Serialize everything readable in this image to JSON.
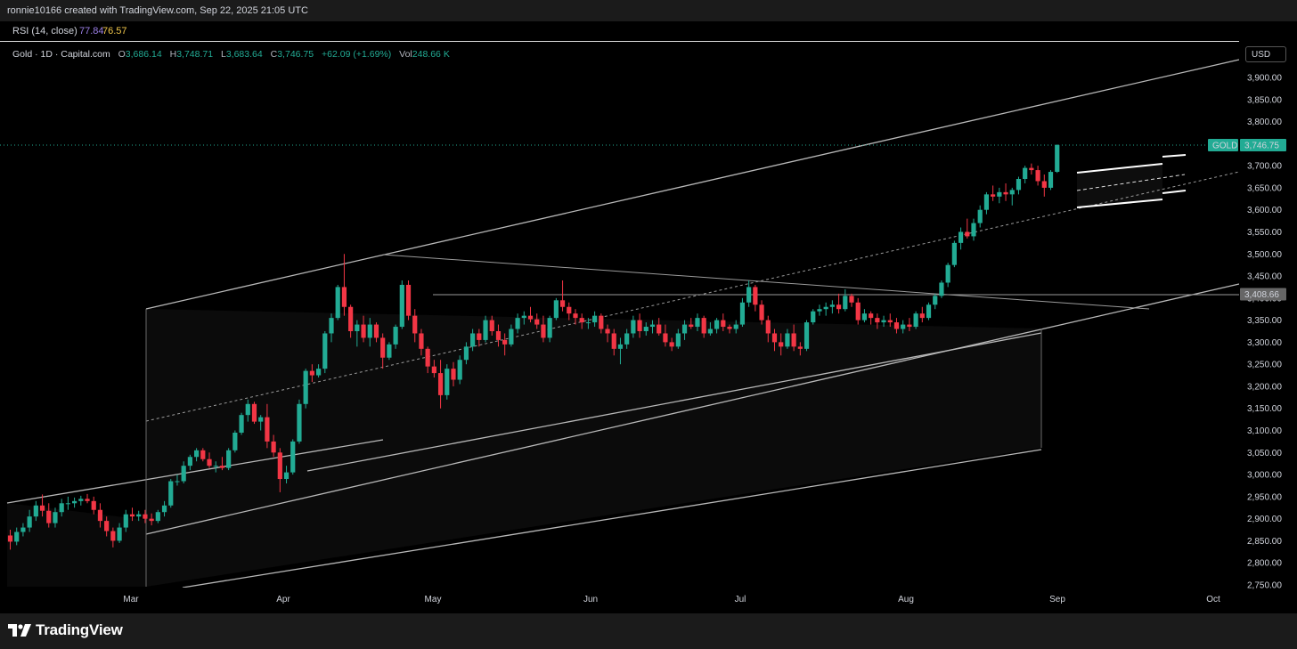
{
  "header": {
    "attribution": "ronnie10166 created with TradingView.com, Sep 22, 2025 21:05 UTC"
  },
  "rsi": {
    "label": "RSI (14, close)",
    "value": "77.84",
    "ma_value": "76.57",
    "value_color": "#9b7fe6",
    "ma_color": "#f0c64a"
  },
  "legend": {
    "symbol": "Gold · 1D · Capital.com",
    "o_key": "O",
    "o_val": "3,686.14",
    "h_key": "H",
    "h_val": "3,748.71",
    "l_key": "L",
    "l_val": "3,683.64",
    "c_key": "C",
    "c_val": "3,746.75",
    "change": "+62.09 (+1.69%)",
    "vol_key": "Vol",
    "vol_val": "248.66 K"
  },
  "price_axis": {
    "currency": "USD",
    "ticks": [
      "3,900.00",
      "3,850.00",
      "3,800.00",
      "3,750.00",
      "3,700.00",
      "3,650.00",
      "3,600.00",
      "3,550.00",
      "3,500.00",
      "3,450.00",
      "3,400.00",
      "3,350.00",
      "3,300.00",
      "3,250.00",
      "3,200.00",
      "3,150.00",
      "3,100.00",
      "3,050.00",
      "3,000.00",
      "2,950.00",
      "2,900.00",
      "2,850.00",
      "2,800.00",
      "2,750.00"
    ],
    "last_price_label": "GOLD",
    "last_price": "3,746.75",
    "level_label": "3,408.66"
  },
  "time_axis": {
    "ticks": [
      "Mar",
      "Apr",
      "May",
      "Jun",
      "Jul",
      "Aug",
      "Sep",
      "Oct"
    ]
  },
  "colors": {
    "up": "#22ab94",
    "down": "#f23645",
    "background": "#000000",
    "line": "#bdbdbd"
  },
  "footer": {
    "brand": "TradingView",
    "logo_icon": "tradingview-logo-icon"
  },
  "chart_data": {
    "type": "candlestick",
    "title": "Gold · 1D · Capital.com",
    "ylim": [
      2730,
      3980
    ],
    "y_scale": "linear",
    "x_ticks": [
      "Mar",
      "Apr",
      "May",
      "Jun",
      "Jul",
      "Aug",
      "Sep",
      "Oct"
    ],
    "grid": false,
    "ohlc": [
      [
        2862,
        2875,
        2830,
        2848
      ],
      [
        2848,
        2880,
        2840,
        2870
      ],
      [
        2870,
        2890,
        2860,
        2880
      ],
      [
        2880,
        2920,
        2870,
        2905
      ],
      [
        2905,
        2940,
        2895,
        2930
      ],
      [
        2930,
        2955,
        2905,
        2918
      ],
      [
        2918,
        2935,
        2880,
        2890
      ],
      [
        2890,
        2925,
        2880,
        2915
      ],
      [
        2915,
        2945,
        2905,
        2935
      ],
      [
        2935,
        2950,
        2920,
        2935
      ],
      [
        2935,
        2948,
        2925,
        2940
      ],
      [
        2940,
        2952,
        2930,
        2945
      ],
      [
        2945,
        2956,
        2935,
        2940
      ],
      [
        2940,
        2950,
        2910,
        2920
      ],
      [
        2920,
        2935,
        2880,
        2895
      ],
      [
        2895,
        2905,
        2860,
        2872
      ],
      [
        2872,
        2880,
        2835,
        2850
      ],
      [
        2850,
        2890,
        2845,
        2880
      ],
      [
        2880,
        2920,
        2870,
        2910
      ],
      [
        2910,
        2925,
        2895,
        2905
      ],
      [
        2905,
        2918,
        2895,
        2910
      ],
      [
        2910,
        2920,
        2890,
        2900
      ],
      [
        2900,
        2912,
        2885,
        2895
      ],
      [
        2895,
        2920,
        2890,
        2915
      ],
      [
        2915,
        2940,
        2905,
        2930
      ],
      [
        2930,
        2990,
        2925,
        2985
      ],
      [
        2985,
        3000,
        2975,
        2985
      ],
      [
        2985,
        3030,
        2980,
        3020
      ],
      [
        3020,
        3045,
        3010,
        3040
      ],
      [
        3040,
        3060,
        3030,
        3055
      ],
      [
        3055,
        3060,
        3030,
        3035
      ],
      [
        3035,
        3050,
        3015,
        3020
      ],
      [
        3020,
        3030,
        3005,
        3020
      ],
      [
        3020,
        3040,
        3010,
        3015
      ],
      [
        3015,
        3060,
        3010,
        3055
      ],
      [
        3055,
        3100,
        3050,
        3095
      ],
      [
        3095,
        3140,
        3090,
        3135
      ],
      [
        3135,
        3170,
        3120,
        3160
      ],
      [
        3160,
        3165,
        3115,
        3120
      ],
      [
        3120,
        3135,
        3100,
        3130
      ],
      [
        3130,
        3160,
        3060,
        3075
      ],
      [
        3075,
        3090,
        3040,
        3050
      ],
      [
        3050,
        3060,
        2960,
        2990
      ],
      [
        2990,
        3020,
        2980,
        3005
      ],
      [
        3005,
        3080,
        3000,
        3075
      ],
      [
        3075,
        3170,
        3070,
        3160
      ],
      [
        3160,
        3240,
        3150,
        3235
      ],
      [
        3235,
        3250,
        3210,
        3225
      ],
      [
        3225,
        3250,
        3220,
        3240
      ],
      [
        3240,
        3325,
        3230,
        3320
      ],
      [
        3320,
        3365,
        3300,
        3355
      ],
      [
        3355,
        3430,
        3350,
        3425
      ],
      [
        3425,
        3500,
        3360,
        3380
      ],
      [
        3380,
        3385,
        3310,
        3325
      ],
      [
        3325,
        3350,
        3290,
        3340
      ],
      [
        3340,
        3360,
        3300,
        3310
      ],
      [
        3310,
        3355,
        3290,
        3340
      ],
      [
        3340,
        3345,
        3300,
        3310
      ],
      [
        3310,
        3320,
        3240,
        3265
      ],
      [
        3265,
        3300,
        3260,
        3295
      ],
      [
        3295,
        3340,
        3285,
        3335
      ],
      [
        3335,
        3440,
        3330,
        3430
      ],
      [
        3430,
        3440,
        3350,
        3360
      ],
      [
        3360,
        3375,
        3300,
        3320
      ],
      [
        3320,
        3330,
        3270,
        3285
      ],
      [
        3285,
        3290,
        3230,
        3245
      ],
      [
        3245,
        3260,
        3220,
        3230
      ],
      [
        3230,
        3260,
        3150,
        3180
      ],
      [
        3180,
        3250,
        3170,
        3240
      ],
      [
        3240,
        3255,
        3200,
        3215
      ],
      [
        3215,
        3270,
        3205,
        3260
      ],
      [
        3260,
        3300,
        3250,
        3290
      ],
      [
        3290,
        3330,
        3280,
        3320
      ],
      [
        3320,
        3330,
        3290,
        3305
      ],
      [
        3305,
        3360,
        3300,
        3350
      ],
      [
        3350,
        3360,
        3315,
        3325
      ],
      [
        3325,
        3340,
        3290,
        3305
      ],
      [
        3305,
        3320,
        3270,
        3295
      ],
      [
        3295,
        3340,
        3290,
        3330
      ],
      [
        3330,
        3365,
        3320,
        3355
      ],
      [
        3355,
        3370,
        3340,
        3360
      ],
      [
        3360,
        3380,
        3345,
        3352
      ],
      [
        3352,
        3365,
        3330,
        3340
      ],
      [
        3340,
        3360,
        3300,
        3310
      ],
      [
        3310,
        3360,
        3300,
        3355
      ],
      [
        3355,
        3400,
        3350,
        3395
      ],
      [
        3395,
        3440,
        3370,
        3380
      ],
      [
        3380,
        3390,
        3350,
        3365
      ],
      [
        3365,
        3375,
        3340,
        3355
      ],
      [
        3355,
        3365,
        3330,
        3345
      ],
      [
        3345,
        3355,
        3330,
        3345
      ],
      [
        3345,
        3370,
        3335,
        3360
      ],
      [
        3360,
        3365,
        3320,
        3330
      ],
      [
        3330,
        3340,
        3300,
        3320
      ],
      [
        3320,
        3330,
        3270,
        3285
      ],
      [
        3285,
        3310,
        3250,
        3295
      ],
      [
        3295,
        3330,
        3285,
        3320
      ],
      [
        3320,
        3360,
        3310,
        3350
      ],
      [
        3350,
        3365,
        3310,
        3325
      ],
      [
        3325,
        3345,
        3315,
        3335
      ],
      [
        3335,
        3350,
        3320,
        3340
      ],
      [
        3340,
        3355,
        3315,
        3320
      ],
      [
        3320,
        3340,
        3290,
        3300
      ],
      [
        3300,
        3310,
        3280,
        3290
      ],
      [
        3290,
        3330,
        3285,
        3320
      ],
      [
        3320,
        3350,
        3305,
        3340
      ],
      [
        3340,
        3355,
        3330,
        3335
      ],
      [
        3335,
        3365,
        3325,
        3355
      ],
      [
        3355,
        3360,
        3310,
        3320
      ],
      [
        3320,
        3345,
        3315,
        3330
      ],
      [
        3330,
        3355,
        3320,
        3350
      ],
      [
        3350,
        3365,
        3325,
        3335
      ],
      [
        3335,
        3340,
        3320,
        3330
      ],
      [
        3330,
        3350,
        3320,
        3340
      ],
      [
        3340,
        3400,
        3335,
        3390
      ],
      [
        3390,
        3440,
        3380,
        3425
      ],
      [
        3425,
        3430,
        3370,
        3385
      ],
      [
        3385,
        3395,
        3340,
        3350
      ],
      [
        3350,
        3360,
        3300,
        3320
      ],
      [
        3320,
        3330,
        3280,
        3300
      ],
      [
        3300,
        3320,
        3270,
        3290
      ],
      [
        3290,
        3330,
        3285,
        3320
      ],
      [
        3320,
        3340,
        3280,
        3290
      ],
      [
        3290,
        3300,
        3270,
        3285
      ],
      [
        3285,
        3350,
        3280,
        3345
      ],
      [
        3345,
        3375,
        3340,
        3370
      ],
      [
        3370,
        3385,
        3360,
        3375
      ],
      [
        3375,
        3390,
        3360,
        3380
      ],
      [
        3380,
        3395,
        3365,
        3385
      ],
      [
        3385,
        3410,
        3365,
        3375
      ],
      [
        3375,
        3420,
        3370,
        3405
      ],
      [
        3405,
        3410,
        3380,
        3390
      ],
      [
        3390,
        3400,
        3340,
        3350
      ],
      [
        3350,
        3375,
        3345,
        3365
      ],
      [
        3365,
        3370,
        3340,
        3355
      ],
      [
        3355,
        3365,
        3330,
        3345
      ],
      [
        3345,
        3360,
        3335,
        3350
      ],
      [
        3350,
        3365,
        3335,
        3345
      ],
      [
        3345,
        3355,
        3320,
        3330
      ],
      [
        3330,
        3350,
        3320,
        3340
      ],
      [
        3340,
        3355,
        3325,
        3335
      ],
      [
        3335,
        3370,
        3330,
        3365
      ],
      [
        3365,
        3380,
        3345,
        3355
      ],
      [
        3355,
        3390,
        3350,
        3385
      ],
      [
        3385,
        3410,
        3375,
        3405
      ],
      [
        3405,
        3440,
        3400,
        3435
      ],
      [
        3435,
        3480,
        3425,
        3475
      ],
      [
        3475,
        3530,
        3470,
        3525
      ],
      [
        3525,
        3560,
        3510,
        3550
      ],
      [
        3550,
        3580,
        3535,
        3540
      ],
      [
        3540,
        3580,
        3530,
        3570
      ],
      [
        3570,
        3610,
        3560,
        3600
      ],
      [
        3600,
        3640,
        3590,
        3635
      ],
      [
        3635,
        3655,
        3620,
        3630
      ],
      [
        3630,
        3650,
        3615,
        3640
      ],
      [
        3640,
        3660,
        3620,
        3635
      ],
      [
        3635,
        3650,
        3610,
        3645
      ],
      [
        3645,
        3675,
        3635,
        3670
      ],
      [
        3670,
        3700,
        3660,
        3695
      ],
      [
        3695,
        3705,
        3680,
        3690
      ],
      [
        3690,
        3700,
        3655,
        3665
      ],
      [
        3665,
        3680,
        3630,
        3650
      ],
      [
        3650,
        3690,
        3645,
        3686
      ],
      [
        3686.14,
        3748.71,
        3683.64,
        3746.75
      ]
    ]
  }
}
